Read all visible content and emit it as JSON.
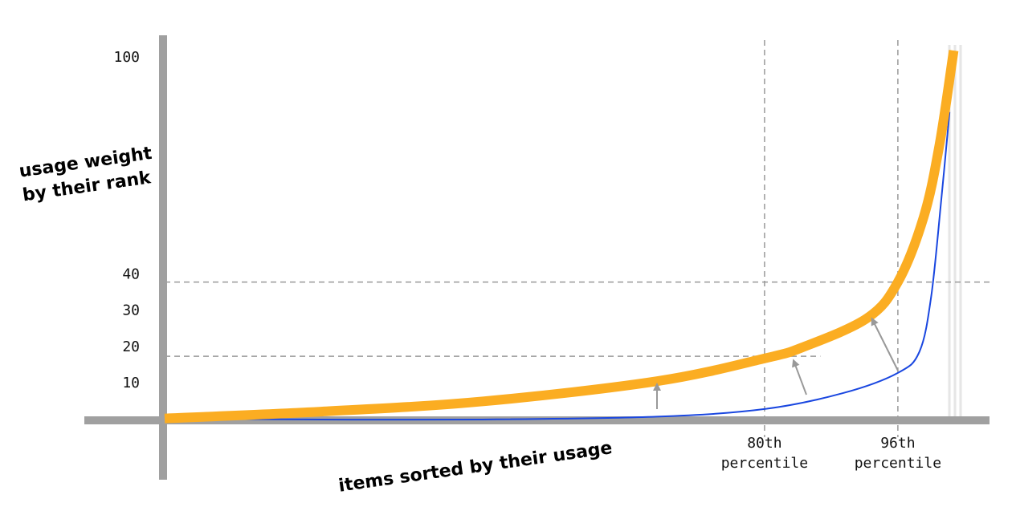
{
  "chart_data": {
    "type": "line",
    "xlabel": "items sorted by their usage",
    "ylabel": "usage weight by their rank",
    "xlim": [
      8,
      107
    ],
    "ylim": [
      0,
      100
    ],
    "yticks": [
      10,
      20,
      30,
      40,
      100
    ],
    "xticks": [
      {
        "value": 80,
        "label": "80th percentile"
      },
      {
        "value": 96,
        "label": "96th percentile"
      }
    ],
    "hlines": [
      {
        "y": 38,
        "x_end": 107
      },
      {
        "y": 17.5,
        "x_end": 86.7
      }
    ],
    "series": [
      {
        "color": "#1a47e0",
        "width": 2,
        "x": [
          8,
          26.8,
          46.1,
          67.1,
          80,
          89.4,
          96,
          98.6,
          100,
          101.2,
          102.2
        ],
        "values": [
          0.3,
          0,
          0,
          0.8,
          2.9,
          7.3,
          12.9,
          18.8,
          34,
          60.5,
          85
        ]
      },
      {
        "color": "#fbad22",
        "width": 12,
        "x": [
          8,
          26.8,
          46.1,
          67.1,
          80,
          84.6,
          92.3,
          96,
          99.1,
          101,
          102.7
        ],
        "values": [
          0.3,
          2.2,
          5,
          10.6,
          16.9,
          20,
          28,
          38,
          56,
          76,
          102
        ]
      }
    ]
  }
}
